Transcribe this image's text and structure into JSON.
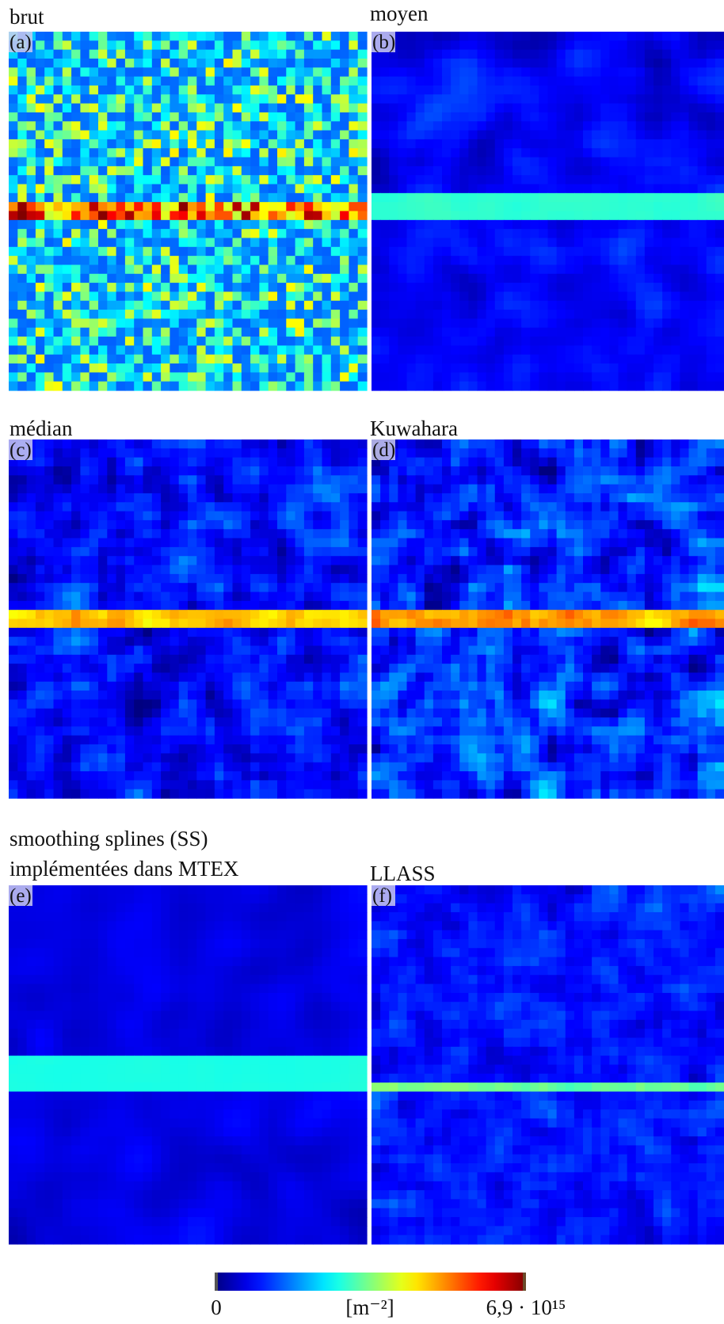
{
  "panels": [
    {
      "label": "(a)",
      "title_lines": [
        "brut"
      ]
    },
    {
      "label": "(b)",
      "title_lines": [
        "moyen"
      ]
    },
    {
      "label": "(c)",
      "title_lines": [
        "médian"
      ]
    },
    {
      "label": "(d)",
      "title_lines": [
        "Kuwahara"
      ]
    },
    {
      "label": "(e)",
      "title_lines": [
        "smoothing splines (SS)",
        "implémentées dans MTEX"
      ]
    },
    {
      "label": "(f)",
      "title_lines": [
        "LLASS"
      ]
    }
  ],
  "colorbar": {
    "min_label": "0",
    "unit_label": "[m⁻²]",
    "max_label": "6,9 · 10¹⁵"
  }
}
